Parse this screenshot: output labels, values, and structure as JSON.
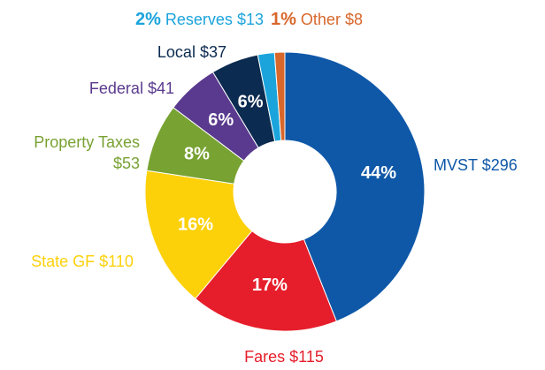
{
  "chart_data": {
    "type": "donut",
    "categories": [
      "MVST",
      "Fares",
      "State GF",
      "Property Taxes",
      "Federal",
      "Local",
      "Reserves",
      "Other"
    ],
    "values": [
      296,
      115,
      110,
      53,
      41,
      37,
      13,
      8
    ],
    "value_labels": [
      "$296",
      "$115",
      "$110",
      "$53",
      "$41",
      "$37",
      "$13",
      "$8"
    ],
    "percent_labels": [
      "44%",
      "17%",
      "16%",
      "8%",
      "6%",
      "6%",
      "2%",
      "1%"
    ],
    "colors": [
      "#0f58a8",
      "#e61e2b",
      "#fdd10a",
      "#78a232",
      "#5a3a8e",
      "#0c2b50",
      "#1ba4dc",
      "#d8672b"
    ]
  }
}
